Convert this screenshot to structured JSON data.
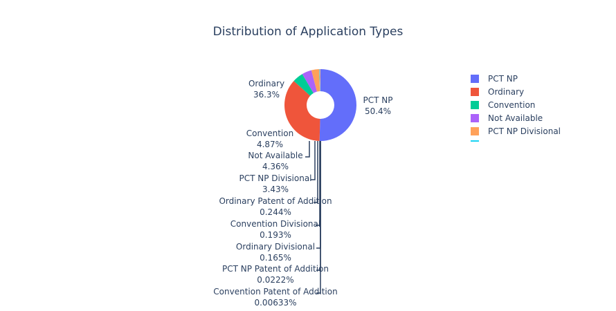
{
  "chart_data": {
    "type": "pie",
    "hole": true,
    "title": "Distribution of Application Types",
    "legend_placement": "right",
    "slices": [
      {
        "label": "PCT NP",
        "value": 50.4,
        "percent_text": "50.4%",
        "color": "#636efa"
      },
      {
        "label": "Ordinary",
        "value": 36.3,
        "percent_text": "36.3%",
        "color": "#ef553b"
      },
      {
        "label": "Convention",
        "value": 4.87,
        "percent_text": "4.87%",
        "color": "#00cc96"
      },
      {
        "label": "Not Available",
        "value": 4.36,
        "percent_text": "4.36%",
        "color": "#ab63fa"
      },
      {
        "label": "PCT NP Divisional",
        "value": 3.43,
        "percent_text": "3.43%",
        "color": "#ffa15a"
      },
      {
        "label": "Ordinary Patent of Addition",
        "value": 0.244,
        "percent_text": "0.244%",
        "color": "#19d3f3"
      },
      {
        "label": "Convention Divisional",
        "value": 0.193,
        "percent_text": "0.193%",
        "color": "#ff6692"
      },
      {
        "label": "Ordinary Divisional",
        "value": 0.165,
        "percent_text": "0.165%",
        "color": "#b6e880"
      },
      {
        "label": "PCT NP Patent of Addition",
        "value": 0.0222,
        "percent_text": "0.0222%",
        "color": "#ff97ff"
      },
      {
        "label": "Convention Patent of Addition",
        "value": 0.00633,
        "percent_text": "0.00633%",
        "color": "#fecb52"
      }
    ],
    "legend_visible_entries": [
      "PCT NP",
      "Ordinary",
      "Convention",
      "Not Available",
      "PCT NP Divisional"
    ]
  }
}
